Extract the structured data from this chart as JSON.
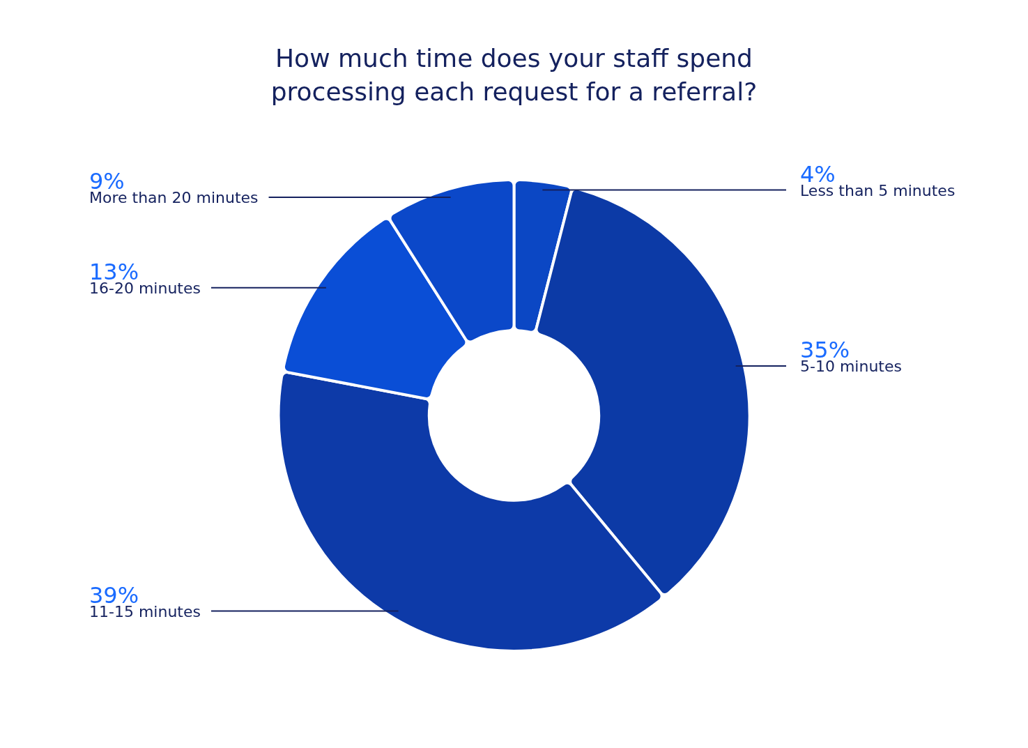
{
  "chart_data": {
    "type": "donut",
    "title": "How much time does your staff spend processing each request for a referral?",
    "categories": [
      "Less than 5 minutes",
      "5-10 minutes",
      "11-15 minutes",
      "16-20 minutes",
      "More than 20 minutes"
    ],
    "values": [
      4,
      35,
      39,
      13,
      9
    ],
    "colors": [
      "#0b47c4",
      "#0c3aa6",
      "#0d3aa8",
      "#0a4ed6",
      "#0b48c9"
    ],
    "value_labels": [
      "4%",
      "35%",
      "39%",
      "13%",
      "9%"
    ],
    "legend": false
  }
}
